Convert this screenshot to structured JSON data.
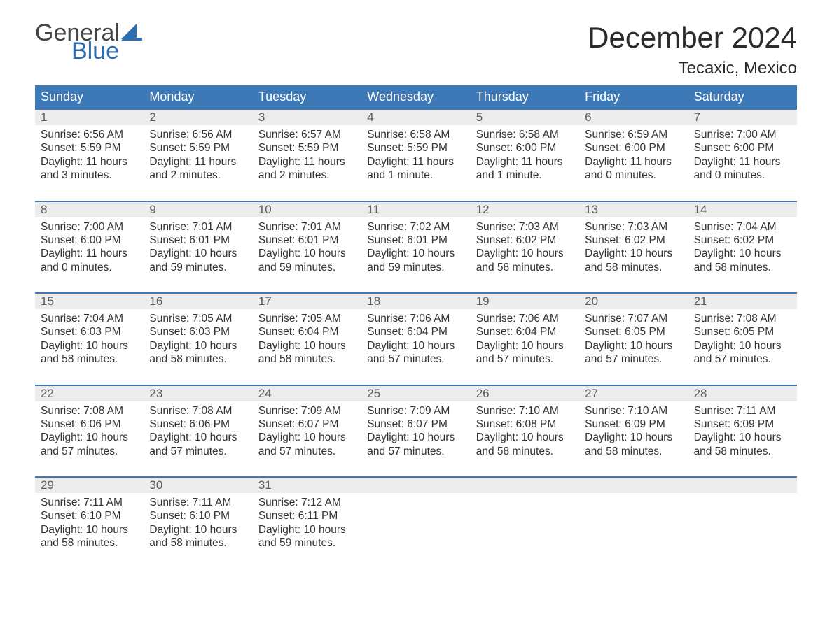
{
  "brand": {
    "word1": "General",
    "word2": "Blue",
    "sail_color": "#2e6eb0",
    "text_gray": "#444444"
  },
  "header": {
    "title": "December 2024",
    "location": "Tecaxic, Mexico"
  },
  "colors": {
    "header_bar": "#3d79b6",
    "week_border": "#3d79b6",
    "daynum_bg": "#ececec",
    "body_text": "#333333",
    "daynum_text": "#5c5c5c",
    "background": "#ffffff"
  },
  "weekdays": [
    "Sunday",
    "Monday",
    "Tuesday",
    "Wednesday",
    "Thursday",
    "Friday",
    "Saturday"
  ],
  "weeks": [
    [
      {
        "num": "1",
        "sunrise": "Sunrise: 6:56 AM",
        "sunset": "Sunset: 5:59 PM",
        "d1": "Daylight: 11 hours",
        "d2": "and 3 minutes."
      },
      {
        "num": "2",
        "sunrise": "Sunrise: 6:56 AM",
        "sunset": "Sunset: 5:59 PM",
        "d1": "Daylight: 11 hours",
        "d2": "and 2 minutes."
      },
      {
        "num": "3",
        "sunrise": "Sunrise: 6:57 AM",
        "sunset": "Sunset: 5:59 PM",
        "d1": "Daylight: 11 hours",
        "d2": "and 2 minutes."
      },
      {
        "num": "4",
        "sunrise": "Sunrise: 6:58 AM",
        "sunset": "Sunset: 5:59 PM",
        "d1": "Daylight: 11 hours",
        "d2": "and 1 minute."
      },
      {
        "num": "5",
        "sunrise": "Sunrise: 6:58 AM",
        "sunset": "Sunset: 6:00 PM",
        "d1": "Daylight: 11 hours",
        "d2": "and 1 minute."
      },
      {
        "num": "6",
        "sunrise": "Sunrise: 6:59 AM",
        "sunset": "Sunset: 6:00 PM",
        "d1": "Daylight: 11 hours",
        "d2": "and 0 minutes."
      },
      {
        "num": "7",
        "sunrise": "Sunrise: 7:00 AM",
        "sunset": "Sunset: 6:00 PM",
        "d1": "Daylight: 11 hours",
        "d2": "and 0 minutes."
      }
    ],
    [
      {
        "num": "8",
        "sunrise": "Sunrise: 7:00 AM",
        "sunset": "Sunset: 6:00 PM",
        "d1": "Daylight: 11 hours",
        "d2": "and 0 minutes."
      },
      {
        "num": "9",
        "sunrise": "Sunrise: 7:01 AM",
        "sunset": "Sunset: 6:01 PM",
        "d1": "Daylight: 10 hours",
        "d2": "and 59 minutes."
      },
      {
        "num": "10",
        "sunrise": "Sunrise: 7:01 AM",
        "sunset": "Sunset: 6:01 PM",
        "d1": "Daylight: 10 hours",
        "d2": "and 59 minutes."
      },
      {
        "num": "11",
        "sunrise": "Sunrise: 7:02 AM",
        "sunset": "Sunset: 6:01 PM",
        "d1": "Daylight: 10 hours",
        "d2": "and 59 minutes."
      },
      {
        "num": "12",
        "sunrise": "Sunrise: 7:03 AM",
        "sunset": "Sunset: 6:02 PM",
        "d1": "Daylight: 10 hours",
        "d2": "and 58 minutes."
      },
      {
        "num": "13",
        "sunrise": "Sunrise: 7:03 AM",
        "sunset": "Sunset: 6:02 PM",
        "d1": "Daylight: 10 hours",
        "d2": "and 58 minutes."
      },
      {
        "num": "14",
        "sunrise": "Sunrise: 7:04 AM",
        "sunset": "Sunset: 6:02 PM",
        "d1": "Daylight: 10 hours",
        "d2": "and 58 minutes."
      }
    ],
    [
      {
        "num": "15",
        "sunrise": "Sunrise: 7:04 AM",
        "sunset": "Sunset: 6:03 PM",
        "d1": "Daylight: 10 hours",
        "d2": "and 58 minutes."
      },
      {
        "num": "16",
        "sunrise": "Sunrise: 7:05 AM",
        "sunset": "Sunset: 6:03 PM",
        "d1": "Daylight: 10 hours",
        "d2": "and 58 minutes."
      },
      {
        "num": "17",
        "sunrise": "Sunrise: 7:05 AM",
        "sunset": "Sunset: 6:04 PM",
        "d1": "Daylight: 10 hours",
        "d2": "and 58 minutes."
      },
      {
        "num": "18",
        "sunrise": "Sunrise: 7:06 AM",
        "sunset": "Sunset: 6:04 PM",
        "d1": "Daylight: 10 hours",
        "d2": "and 57 minutes."
      },
      {
        "num": "19",
        "sunrise": "Sunrise: 7:06 AM",
        "sunset": "Sunset: 6:04 PM",
        "d1": "Daylight: 10 hours",
        "d2": "and 57 minutes."
      },
      {
        "num": "20",
        "sunrise": "Sunrise: 7:07 AM",
        "sunset": "Sunset: 6:05 PM",
        "d1": "Daylight: 10 hours",
        "d2": "and 57 minutes."
      },
      {
        "num": "21",
        "sunrise": "Sunrise: 7:08 AM",
        "sunset": "Sunset: 6:05 PM",
        "d1": "Daylight: 10 hours",
        "d2": "and 57 minutes."
      }
    ],
    [
      {
        "num": "22",
        "sunrise": "Sunrise: 7:08 AM",
        "sunset": "Sunset: 6:06 PM",
        "d1": "Daylight: 10 hours",
        "d2": "and 57 minutes."
      },
      {
        "num": "23",
        "sunrise": "Sunrise: 7:08 AM",
        "sunset": "Sunset: 6:06 PM",
        "d1": "Daylight: 10 hours",
        "d2": "and 57 minutes."
      },
      {
        "num": "24",
        "sunrise": "Sunrise: 7:09 AM",
        "sunset": "Sunset: 6:07 PM",
        "d1": "Daylight: 10 hours",
        "d2": "and 57 minutes."
      },
      {
        "num": "25",
        "sunrise": "Sunrise: 7:09 AM",
        "sunset": "Sunset: 6:07 PM",
        "d1": "Daylight: 10 hours",
        "d2": "and 57 minutes."
      },
      {
        "num": "26",
        "sunrise": "Sunrise: 7:10 AM",
        "sunset": "Sunset: 6:08 PM",
        "d1": "Daylight: 10 hours",
        "d2": "and 58 minutes."
      },
      {
        "num": "27",
        "sunrise": "Sunrise: 7:10 AM",
        "sunset": "Sunset: 6:09 PM",
        "d1": "Daylight: 10 hours",
        "d2": "and 58 minutes."
      },
      {
        "num": "28",
        "sunrise": "Sunrise: 7:11 AM",
        "sunset": "Sunset: 6:09 PM",
        "d1": "Daylight: 10 hours",
        "d2": "and 58 minutes."
      }
    ],
    [
      {
        "num": "29",
        "sunrise": "Sunrise: 7:11 AM",
        "sunset": "Sunset: 6:10 PM",
        "d1": "Daylight: 10 hours",
        "d2": "and 58 minutes."
      },
      {
        "num": "30",
        "sunrise": "Sunrise: 7:11 AM",
        "sunset": "Sunset: 6:10 PM",
        "d1": "Daylight: 10 hours",
        "d2": "and 58 minutes."
      },
      {
        "num": "31",
        "sunrise": "Sunrise: 7:12 AM",
        "sunset": "Sunset: 6:11 PM",
        "d1": "Daylight: 10 hours",
        "d2": "and 59 minutes."
      },
      {
        "empty": true
      },
      {
        "empty": true
      },
      {
        "empty": true
      },
      {
        "empty": true
      }
    ]
  ]
}
